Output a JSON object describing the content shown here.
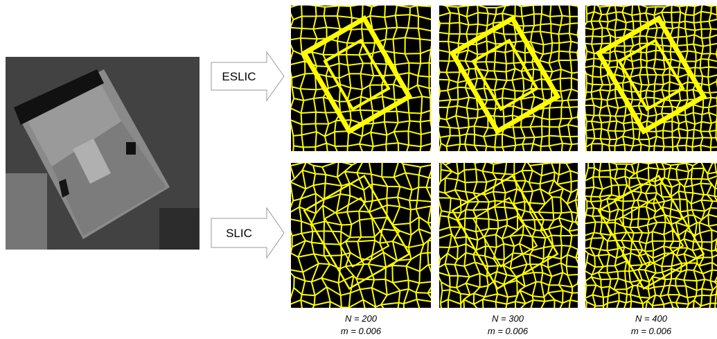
{
  "rows": [
    {
      "label": "ESLIC"
    },
    {
      "label": "SLIC"
    }
  ],
  "captions": [
    {
      "n": "N = 200",
      "m": "m = 0.006"
    },
    {
      "n": "N = 300",
      "m": "m = 0.006"
    },
    {
      "n": "N = 400",
      "m": "m = 0.006"
    }
  ]
}
